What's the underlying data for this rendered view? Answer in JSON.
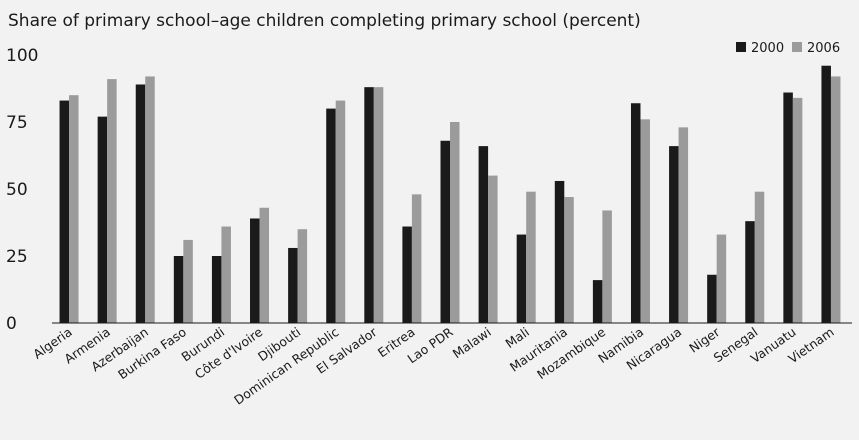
{
  "chart_data": {
    "type": "bar",
    "title": "Share of primary school–age children completing primary school (percent)",
    "xlabel": "",
    "ylabel": "",
    "ylim": [
      0,
      100
    ],
    "yticks": [
      0,
      25,
      50,
      75,
      100
    ],
    "grid": false,
    "legend_position": "top-right",
    "categories": [
      "Algeria",
      "Armenia",
      "Azerbaijan",
      "Burkina Faso",
      "Burundi",
      "Côte d'Ivoire",
      "Djibouti",
      "Dominican Republic",
      "El Salvador",
      "Eritrea",
      "Lao PDR",
      "Malawi",
      "Mali",
      "Mauritania",
      "Mozambique",
      "Namibia",
      "Nicaragua",
      "Niger",
      "Senegal",
      "Vanuatu",
      "Vietnam"
    ],
    "series": [
      {
        "name": "2000",
        "color": "#1a1a1a",
        "values": [
          83,
          77,
          89,
          25,
          25,
          39,
          28,
          80,
          88,
          36,
          68,
          66,
          33,
          53,
          16,
          82,
          66,
          18,
          38,
          86,
          96
        ]
      },
      {
        "name": "2006",
        "color": "#9b9b9b",
        "values": [
          85,
          91,
          92,
          31,
          36,
          43,
          35,
          83,
          88,
          48,
          75,
          55,
          49,
          47,
          42,
          76,
          73,
          33,
          49,
          84,
          92
        ]
      }
    ]
  }
}
